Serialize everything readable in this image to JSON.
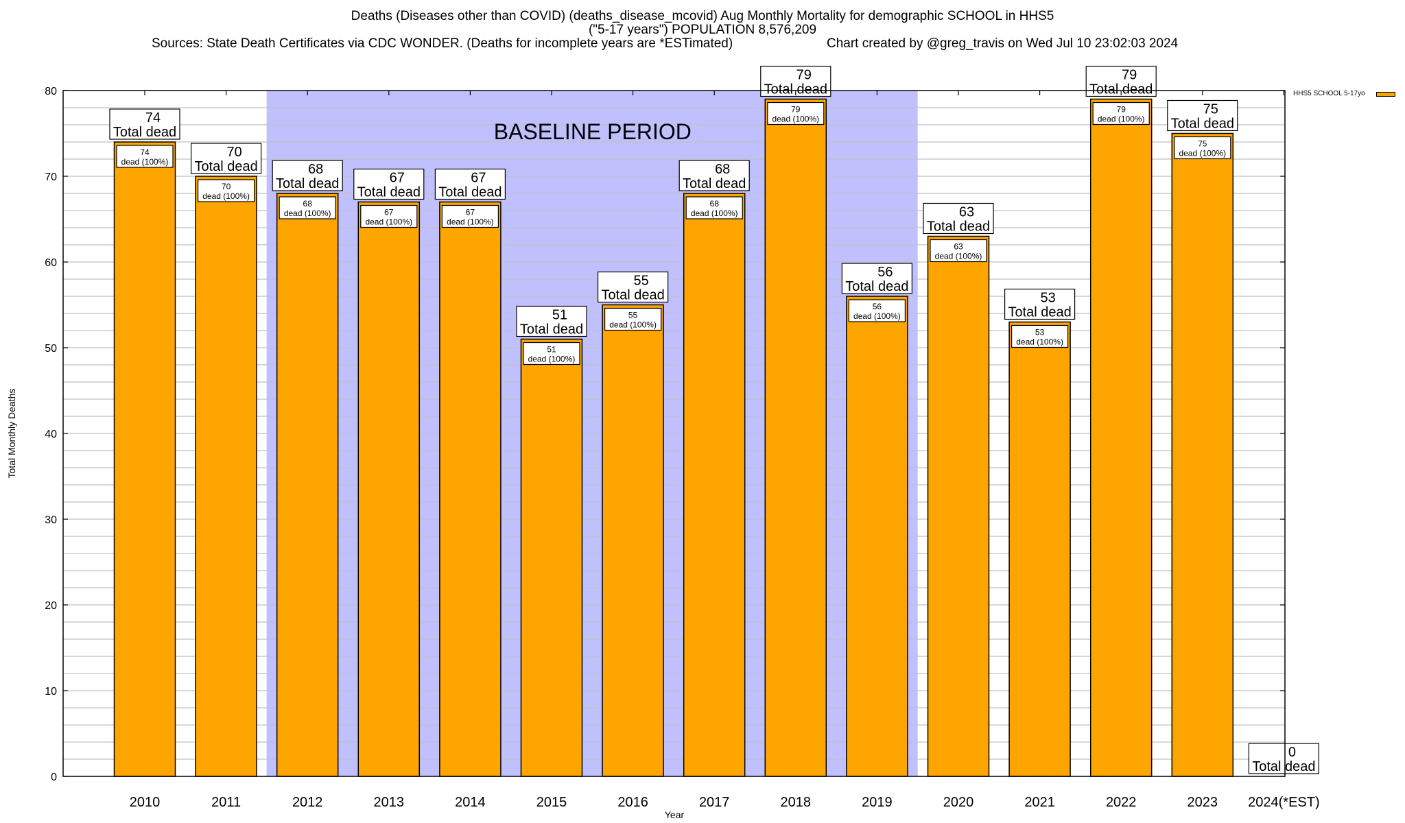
{
  "header": {
    "title_line1": "Deaths (Diseases other than COVID) (deaths_disease_mcovid) Aug Monthly Mortality for demographic SCHOOL in HHS5",
    "title_line2": "(\"5-17 years\") POPULATION 8,576,209",
    "sources": "Sources: State Death Certificates via CDC WONDER. (Deaths for incomplete years are *ESTimated)",
    "credit": "Chart created by @greg_travis on Wed Jul 10 23:02:03 2024"
  },
  "chart_data": {
    "type": "bar",
    "title": "Deaths (Diseases other than COVID) (deaths_disease_mcovid) Aug Monthly Mortality for demographic SCHOOL in HHS5",
    "xlabel": "Year",
    "ylabel": "Total Monthly Deaths",
    "ylim": [
      0,
      80
    ],
    "yticks": [
      0,
      10,
      20,
      30,
      40,
      50,
      60,
      70,
      80
    ],
    "minor_grid_step": 2,
    "grid": true,
    "categories": [
      "2010",
      "2011",
      "2012",
      "2013",
      "2014",
      "2015",
      "2016",
      "2017",
      "2018",
      "2019",
      "2020",
      "2021",
      "2022",
      "2023",
      "2024(*EST)"
    ],
    "series": [
      {
        "name": "HHS5 SCHOOL 5-17yo",
        "color": "#ffa500",
        "values": [
          74,
          70,
          68,
          67,
          67,
          51,
          55,
          68,
          79,
          56,
          63,
          53,
          79,
          75,
          0
        ]
      }
    ],
    "total_label_suffix": "Total dead",
    "inner_label_suffix": "dead (100%)",
    "annotations": [
      {
        "text": "BASELINE PERIOD",
        "from_category": "2012",
        "to_category": "2019",
        "color": "#c0c0ff"
      }
    ],
    "legend": {
      "entries": [
        "HHS5 SCHOOL 5-17yo"
      ],
      "placement": "top-right-outside"
    }
  },
  "colors": {
    "bar": "#ffa500",
    "baseline_shade": "#c0c0ff",
    "grid": "#c0c0c0",
    "axis": "#000000"
  }
}
